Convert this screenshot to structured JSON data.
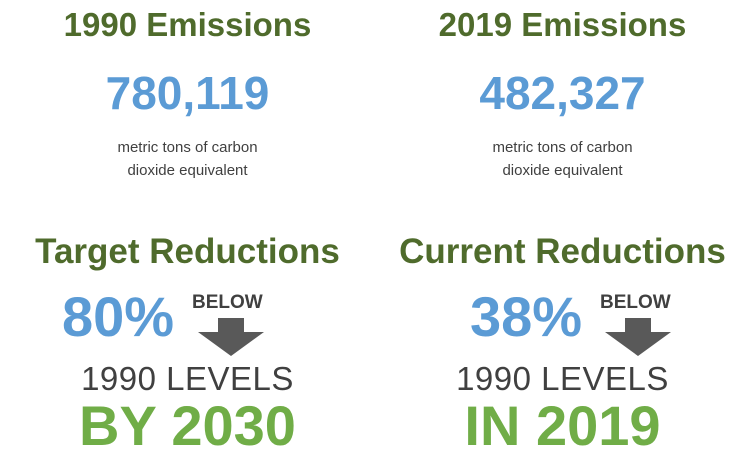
{
  "emissions_1990": {
    "title": "1990 Emissions",
    "value": "780,119",
    "unit_line1": "metric tons of carbon",
    "unit_line2": "dioxide equivalent"
  },
  "emissions_2019": {
    "title": "2019 Emissions",
    "value": "482,327",
    "unit_line1": "metric tons of carbon",
    "unit_line2": "dioxide equivalent"
  },
  "target": {
    "title": "Target Reductions",
    "percent": "80%",
    "below_label": "BELOW",
    "levels": "1990 LEVELS",
    "year": "BY 2030"
  },
  "current": {
    "title": "Current Reductions",
    "percent": "38%",
    "below_label": "BELOW",
    "levels": "1990 LEVELS",
    "year": "IN 2019"
  },
  "colors": {
    "heading_green": "#4f6b2c",
    "accent_blue": "#5b9bd5",
    "year_green": "#70ad47",
    "text_gray": "#404040",
    "arrow_gray": "#595959"
  },
  "icons": [
    "down-arrow-icon"
  ]
}
